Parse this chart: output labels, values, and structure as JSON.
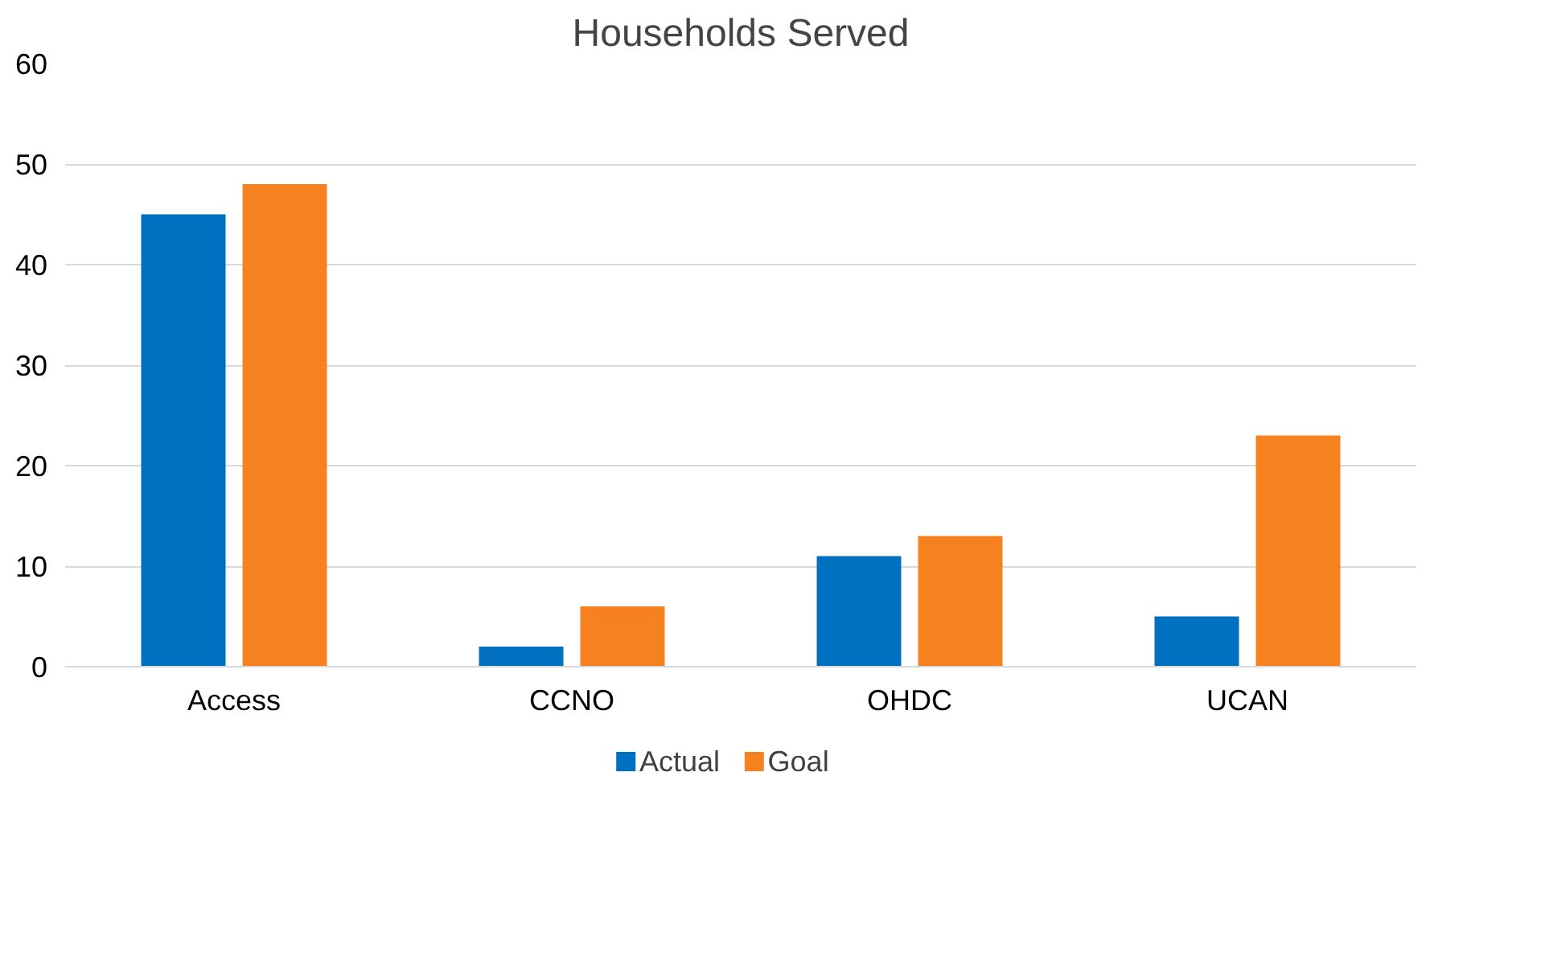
{
  "chart_data": {
    "type": "bar",
    "title": "Households Served",
    "categories": [
      "Access",
      "CCNO",
      "OHDC",
      "UCAN"
    ],
    "series": [
      {
        "name": "Actual",
        "color": "#0070c0",
        "values": [
          45,
          2,
          11,
          5
        ]
      },
      {
        "name": "Goal",
        "color": "#f5821f",
        "values": [
          48,
          6,
          13,
          23
        ]
      }
    ],
    "ylim": [
      0,
      60
    ],
    "yticks": [
      0,
      10,
      20,
      30,
      40,
      50,
      60
    ],
    "grid": "y",
    "legend": "bottom"
  }
}
